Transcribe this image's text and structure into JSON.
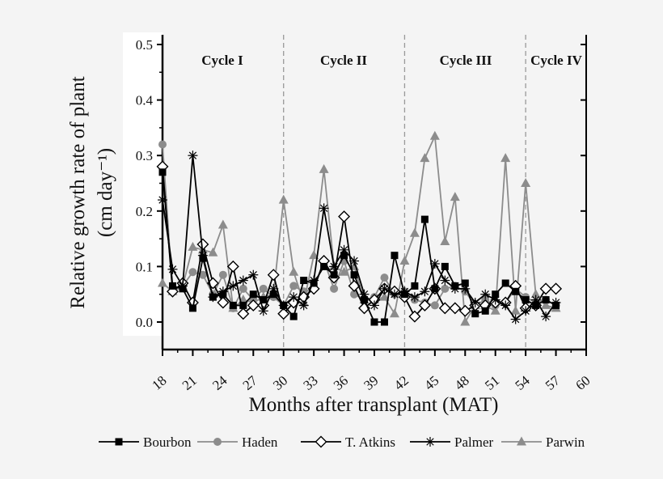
{
  "chart_data": {
    "type": "line",
    "xlabel": "Months after transplant (MAT)",
    "ylabel": "Relative growth rate of plant",
    "ylabel_unit": "(cm day⁻¹)",
    "xlim": [
      18,
      60
    ],
    "ylim": [
      -0.05,
      0.5
    ],
    "x_ticks": [
      "18",
      "21",
      "24",
      "27",
      "30",
      "33",
      "36",
      "39",
      "42",
      "45",
      "48",
      "51",
      "54",
      "57",
      "60"
    ],
    "y_ticks": [
      "0.0",
      "0.1",
      "0.2",
      "0.3",
      "0.4",
      "0.5"
    ],
    "cycle_boundaries": [
      30,
      42,
      54
    ],
    "cycles": [
      "Cycle I",
      "Cycle II",
      "Cycle III",
      "Cycle IV"
    ],
    "legend_position": "bottom",
    "x": [
      18,
      19,
      20,
      21,
      22,
      23,
      24,
      25,
      26,
      27,
      28,
      29,
      30,
      31,
      32,
      33,
      34,
      35,
      36,
      37,
      38,
      39,
      40,
      41,
      42,
      43,
      44,
      45,
      46,
      47,
      48,
      49,
      50,
      51,
      52,
      53,
      54,
      55,
      56,
      57
    ],
    "series": [
      {
        "name": "Bourbon",
        "color": "#000000",
        "marker": "square",
        "values": [
          0.27,
          0.065,
          0.06,
          0.025,
          0.115,
          0.045,
          0.05,
          0.03,
          0.03,
          0.05,
          0.04,
          0.05,
          0.03,
          0.01,
          0.075,
          0.07,
          0.1,
          0.085,
          0.12,
          0.085,
          0.04,
          0.0,
          0.0,
          0.12,
          0.05,
          0.065,
          0.185,
          0.06,
          0.1,
          0.065,
          0.07,
          0.015,
          0.02,
          0.05,
          0.07,
          0.055,
          0.04,
          0.03,
          0.04,
          0.03
        ]
      },
      {
        "name": "Haden",
        "color": "#8c8c8c",
        "marker": "circle",
        "values": [
          0.32,
          0.055,
          0.065,
          0.09,
          0.085,
          0.05,
          0.085,
          0.025,
          0.06,
          0.04,
          0.06,
          0.045,
          0.03,
          0.065,
          0.055,
          0.06,
          0.11,
          0.06,
          0.11,
          0.05,
          0.04,
          0.045,
          0.08,
          0.05,
          0.055,
          0.04,
          0.035,
          0.03,
          0.06,
          0.065,
          0.055,
          0.03,
          0.04,
          0.03,
          0.035,
          0.06,
          0.045,
          0.035,
          0.04,
          0.03
        ]
      },
      {
        "name": "T. Atkins",
        "color": "#000000",
        "marker": "diamond",
        "values": [
          0.28,
          0.055,
          0.07,
          0.035,
          0.14,
          0.07,
          0.035,
          0.1,
          0.015,
          0.03,
          0.03,
          0.085,
          0.015,
          0.035,
          0.045,
          0.06,
          0.11,
          0.08,
          0.19,
          0.065,
          0.025,
          0.04,
          0.06,
          0.055,
          0.045,
          0.01,
          0.03,
          0.06,
          0.025,
          0.025,
          0.02,
          0.03,
          0.03,
          0.035,
          0.035,
          0.065,
          0.025,
          0.03,
          0.06,
          0.06
        ]
      },
      {
        "name": "Palmer",
        "color": "#000000",
        "marker": "star",
        "values": [
          0.22,
          0.095,
          0.065,
          0.3,
          0.12,
          0.045,
          0.055,
          0.065,
          0.075,
          0.085,
          0.02,
          0.06,
          0.03,
          0.045,
          0.03,
          0.075,
          0.205,
          0.1,
          0.13,
          0.11,
          0.05,
          0.03,
          0.06,
          0.05,
          0.055,
          0.045,
          0.055,
          0.105,
          0.075,
          0.06,
          0.06,
          0.035,
          0.05,
          0.04,
          0.03,
          0.005,
          0.02,
          0.04,
          0.01,
          0.035
        ]
      },
      {
        "name": "Parwin",
        "color": "#8c8c8c",
        "marker": "triangle",
        "values": [
          0.07,
          0.055,
          0.065,
          0.135,
          0.13,
          0.125,
          0.175,
          0.025,
          0.04,
          0.035,
          0.045,
          0.05,
          0.22,
          0.09,
          0.035,
          0.12,
          0.275,
          0.1,
          0.09,
          0.1,
          0.04,
          0.04,
          0.045,
          0.015,
          0.11,
          0.16,
          0.295,
          0.335,
          0.145,
          0.225,
          0.0,
          0.03,
          0.03,
          0.02,
          0.295,
          0.02,
          0.25,
          0.05,
          0.03,
          0.025
        ]
      }
    ]
  }
}
